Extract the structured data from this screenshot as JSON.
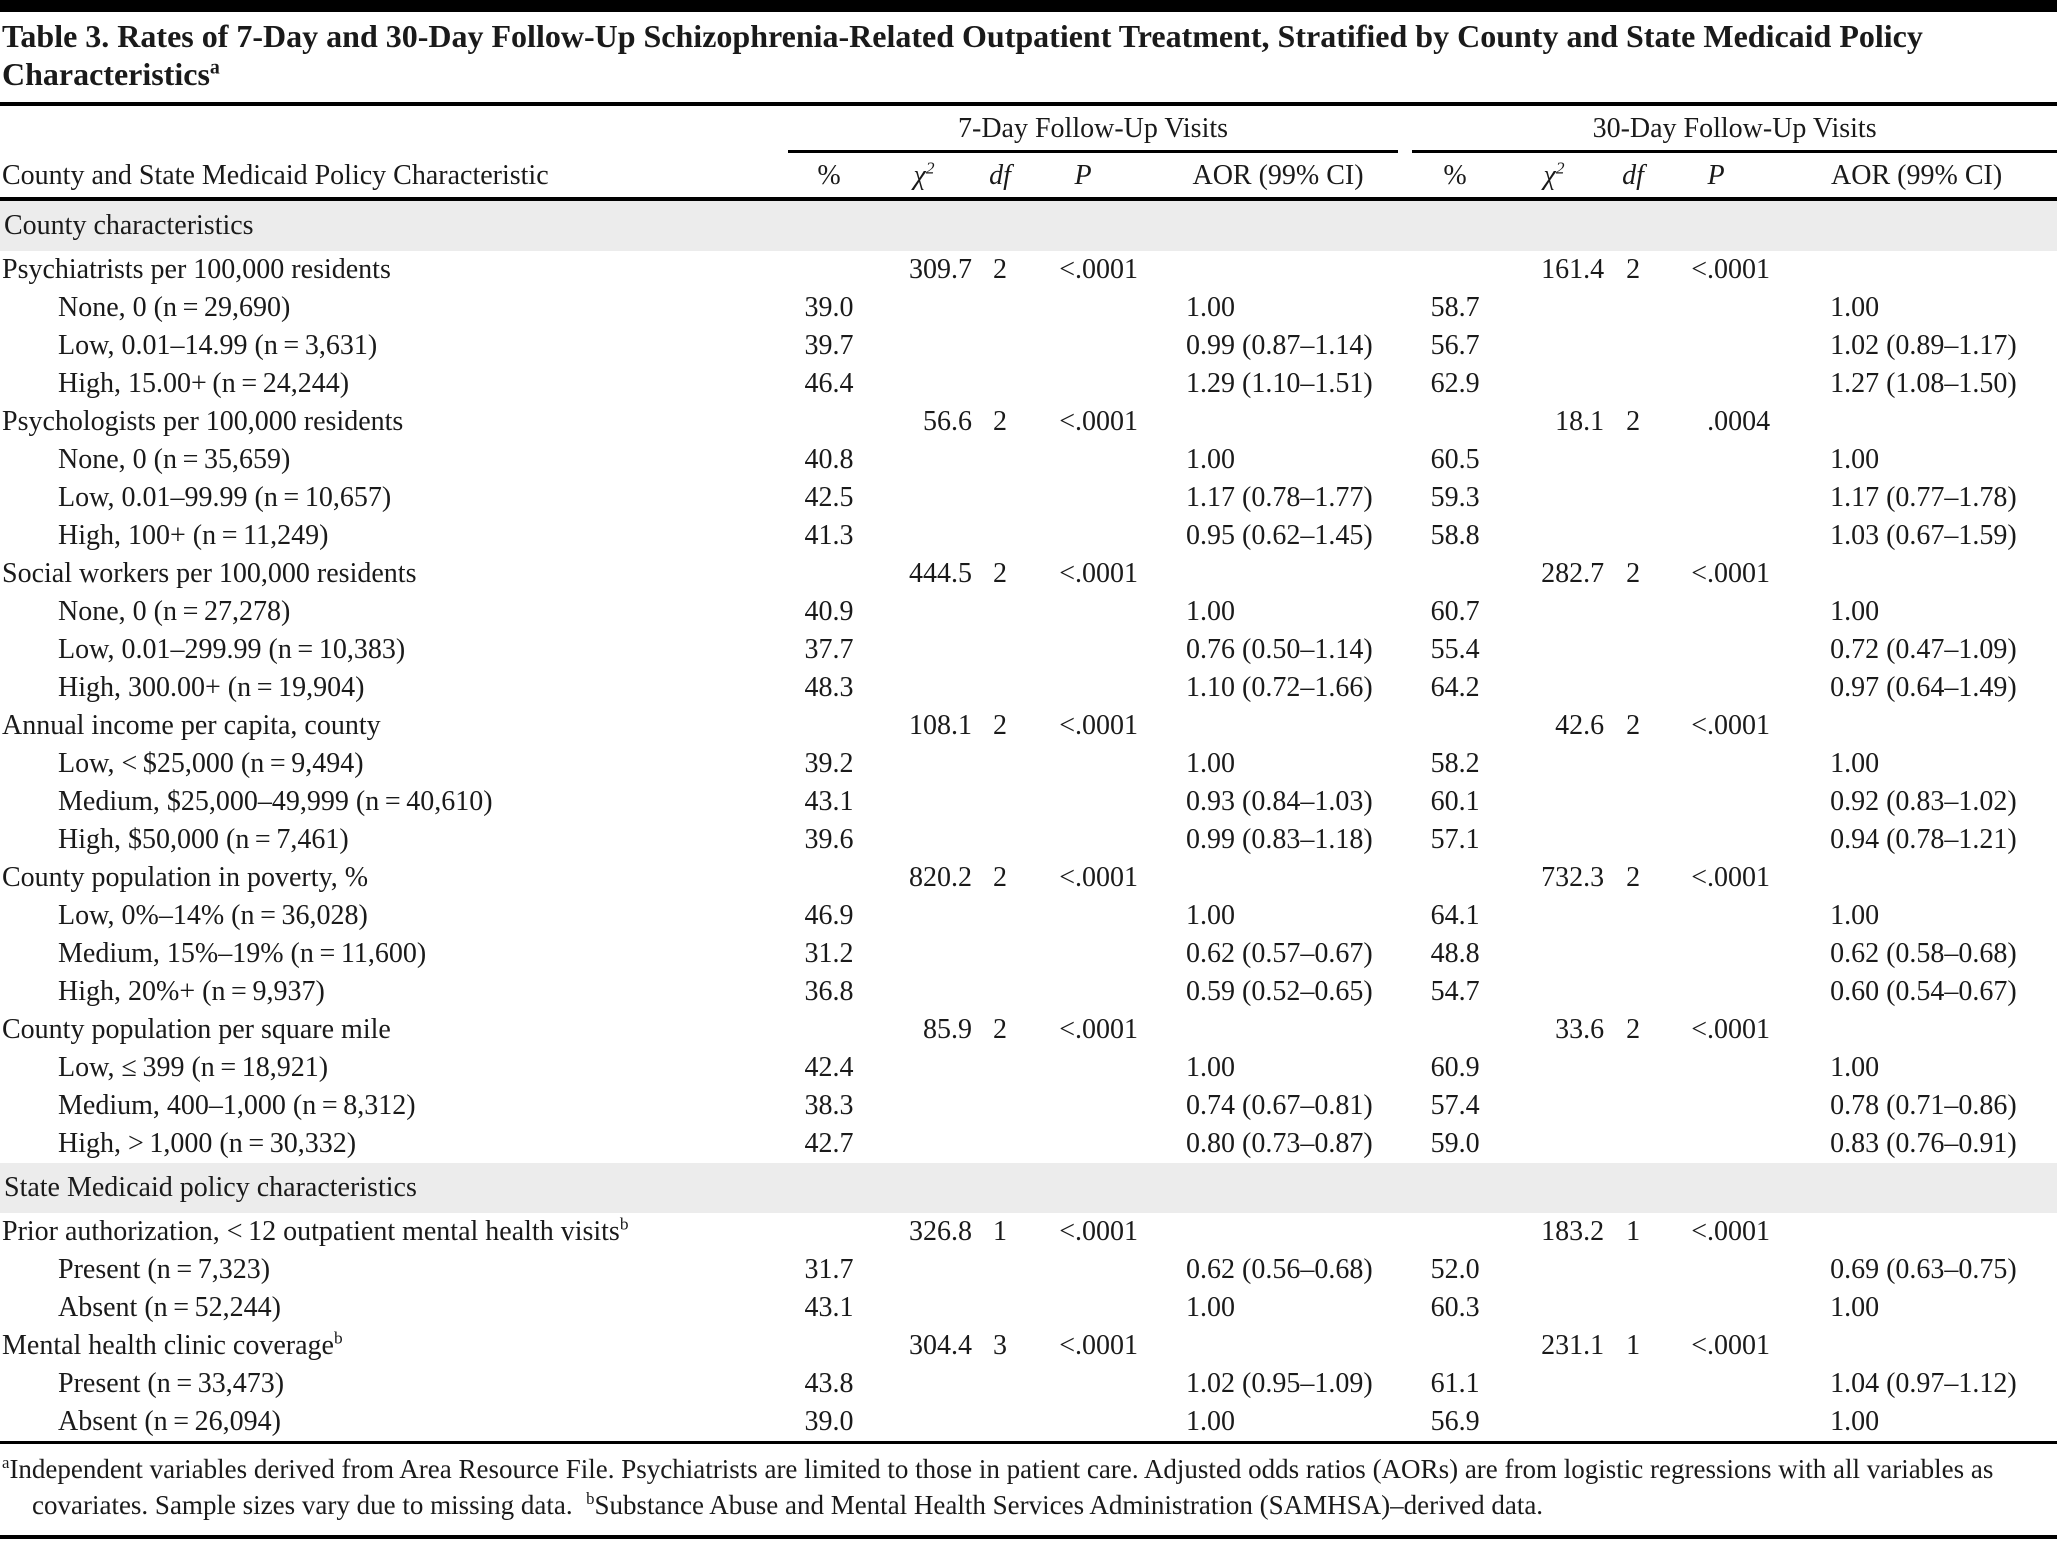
{
  "colors": {
    "rule": "#000000",
    "band": "#ececec",
    "ink": "#1a1a1a"
  },
  "title": {
    "text": "Table 3. Rates of 7-Day and 30-Day Follow-Up Schizophrenia-Related Outpatient Treatment, Stratified by County and State Medicaid Policy Characteristics",
    "sup": "a"
  },
  "header": {
    "stub": "County and State Medicaid Policy Characteristic",
    "groups": [
      {
        "label": "7-Day Follow-Up Visits"
      },
      {
        "label": "30-Day Follow-Up Visits"
      }
    ],
    "columns": [
      {
        "name": "pct",
        "text": "%",
        "italic": false
      },
      {
        "name": "chi2",
        "text": "χ",
        "sup": "2",
        "italic": true
      },
      {
        "name": "df",
        "text": "df",
        "italic": true
      },
      {
        "name": "p",
        "text": "P",
        "italic": true
      },
      {
        "name": "aor",
        "text": "AOR (99% CI)",
        "italic": false
      }
    ]
  },
  "table": {
    "rows": [
      {
        "type": "section",
        "label": "County characteristics"
      },
      {
        "type": "group",
        "label": "Psychiatrists per 100,000 residents",
        "cells": [
          "",
          "309.7",
          "2",
          "<.0001",
          "",
          "",
          "161.4",
          "2",
          "<.0001",
          ""
        ]
      },
      {
        "type": "item",
        "label": "None, 0 (n = 29,690)",
        "cells": [
          "39.0",
          "",
          "",
          "",
          "1.00",
          "58.7",
          "",
          "",
          "",
          "1.00"
        ]
      },
      {
        "type": "item",
        "label": "Low, 0.01–14.99 (n = 3,631)",
        "cells": [
          "39.7",
          "",
          "",
          "",
          "0.99 (0.87–1.14)",
          "56.7",
          "",
          "",
          "",
          "1.02 (0.89–1.17)"
        ]
      },
      {
        "type": "item",
        "label": "High, 15.00+ (n = 24,244)",
        "cells": [
          "46.4",
          "",
          "",
          "",
          "1.29 (1.10–1.51)",
          "62.9",
          "",
          "",
          "",
          "1.27 (1.08–1.50)"
        ]
      },
      {
        "type": "group",
        "label": "Psychologists per 100,000 residents",
        "cells": [
          "",
          "56.6",
          "2",
          "<.0001",
          "",
          "",
          "18.1",
          "2",
          ".0004",
          ""
        ]
      },
      {
        "type": "item",
        "label": "None, 0 (n = 35,659)",
        "cells": [
          "40.8",
          "",
          "",
          "",
          "1.00",
          "60.5",
          "",
          "",
          "",
          "1.00"
        ]
      },
      {
        "type": "item",
        "label": "Low, 0.01–99.99 (n = 10,657)",
        "cells": [
          "42.5",
          "",
          "",
          "",
          "1.17 (0.78–1.77)",
          "59.3",
          "",
          "",
          "",
          "1.17 (0.77–1.78)"
        ]
      },
      {
        "type": "item",
        "label": "High, 100+ (n = 11,249)",
        "cells": [
          "41.3",
          "",
          "",
          "",
          "0.95 (0.62–1.45)",
          "58.8",
          "",
          "",
          "",
          "1.03 (0.67–1.59)"
        ]
      },
      {
        "type": "group",
        "label": "Social workers per 100,000 residents",
        "cells": [
          "",
          "444.5",
          "2",
          "<.0001",
          "",
          "",
          "282.7",
          "2",
          "<.0001",
          ""
        ]
      },
      {
        "type": "item",
        "label": "None, 0 (n = 27,278)",
        "cells": [
          "40.9",
          "",
          "",
          "",
          "1.00",
          "60.7",
          "",
          "",
          "",
          "1.00"
        ]
      },
      {
        "type": "item",
        "label": "Low, 0.01–299.99 (n = 10,383)",
        "cells": [
          "37.7",
          "",
          "",
          "",
          "0.76 (0.50–1.14)",
          "55.4",
          "",
          "",
          "",
          "0.72 (0.47–1.09)"
        ]
      },
      {
        "type": "item",
        "label": "High, 300.00+ (n = 19,904)",
        "cells": [
          "48.3",
          "",
          "",
          "",
          "1.10 (0.72–1.66)",
          "64.2",
          "",
          "",
          "",
          "0.97 (0.64–1.49)"
        ]
      },
      {
        "type": "group",
        "label": "Annual income per capita, county",
        "cells": [
          "",
          "108.1",
          "2",
          "<.0001",
          "",
          "",
          "42.6",
          "2",
          "<.0001",
          ""
        ]
      },
      {
        "type": "item",
        "label": "Low, < $25,000 (n = 9,494)",
        "cells": [
          "39.2",
          "",
          "",
          "",
          "1.00",
          "58.2",
          "",
          "",
          "",
          "1.00"
        ]
      },
      {
        "type": "item",
        "label": "Medium, $25,000–49,999 (n = 40,610)",
        "cells": [
          "43.1",
          "",
          "",
          "",
          "0.93 (0.84–1.03)",
          "60.1",
          "",
          "",
          "",
          "0.92 (0.83–1.02)"
        ]
      },
      {
        "type": "item",
        "label": "High, $50,000 (n = 7,461)",
        "cells": [
          "39.6",
          "",
          "",
          "",
          "0.99 (0.83–1.18)",
          "57.1",
          "",
          "",
          "",
          "0.94 (0.78–1.21)"
        ]
      },
      {
        "type": "group",
        "label": "County population in poverty, %",
        "cells": [
          "",
          "820.2",
          "2",
          "<.0001",
          "",
          "",
          "732.3",
          "2",
          "<.0001",
          ""
        ]
      },
      {
        "type": "item",
        "label": "Low, 0%–14% (n = 36,028)",
        "cells": [
          "46.9",
          "",
          "",
          "",
          "1.00",
          "64.1",
          "",
          "",
          "",
          "1.00"
        ]
      },
      {
        "type": "item",
        "label": "Medium, 15%–19% (n = 11,600)",
        "cells": [
          "31.2",
          "",
          "",
          "",
          "0.62 (0.57–0.67)",
          "48.8",
          "",
          "",
          "",
          "0.62 (0.58–0.68)"
        ]
      },
      {
        "type": "item",
        "label": "High, 20%+ (n = 9,937)",
        "cells": [
          "36.8",
          "",
          "",
          "",
          "0.59 (0.52–0.65)",
          "54.7",
          "",
          "",
          "",
          "0.60 (0.54–0.67)"
        ]
      },
      {
        "type": "group",
        "label": "County population per square mile",
        "cells": [
          "",
          "85.9",
          "2",
          "<.0001",
          "",
          "",
          "33.6",
          "2",
          "<.0001",
          ""
        ]
      },
      {
        "type": "item",
        "label": "Low, ≤ 399 (n = 18,921)",
        "cells": [
          "42.4",
          "",
          "",
          "",
          "1.00",
          "60.9",
          "",
          "",
          "",
          "1.00"
        ]
      },
      {
        "type": "item",
        "label": "Medium, 400–1,000 (n = 8,312)",
        "cells": [
          "38.3",
          "",
          "",
          "",
          "0.74 (0.67–0.81)",
          "57.4",
          "",
          "",
          "",
          "0.78 (0.71–0.86)"
        ]
      },
      {
        "type": "item",
        "label": "High, > 1,000 (n = 30,332)",
        "cells": [
          "42.7",
          "",
          "",
          "",
          "0.80 (0.73–0.87)",
          "59.0",
          "",
          "",
          "",
          "0.83 (0.76–0.91)"
        ]
      },
      {
        "type": "section",
        "label": "State Medicaid policy characteristics"
      },
      {
        "type": "group",
        "label": "Prior authorization, < 12 outpatient mental health visits",
        "sup": "b",
        "cells": [
          "",
          "326.8",
          "1",
          "<.0001",
          "",
          "",
          "183.2",
          "1",
          "<.0001",
          ""
        ]
      },
      {
        "type": "item",
        "label": "Present (n = 7,323)",
        "cells": [
          "31.7",
          "",
          "",
          "",
          "0.62 (0.56–0.68)",
          "52.0",
          "",
          "",
          "",
          "0.69 (0.63–0.75)"
        ]
      },
      {
        "type": "item",
        "label": "Absent (n = 52,244)",
        "cells": [
          "43.1",
          "",
          "",
          "",
          "1.00",
          "60.3",
          "",
          "",
          "",
          "1.00"
        ]
      },
      {
        "type": "group",
        "label": "Mental health clinic coverage",
        "sup": "b",
        "cells": [
          "",
          "304.4",
          "3",
          "<.0001",
          "",
          "",
          "231.1",
          "1",
          "<.0001",
          ""
        ]
      },
      {
        "type": "item",
        "label": "Present (n = 33,473)",
        "cells": [
          "43.8",
          "",
          "",
          "",
          "1.02 (0.95–1.09)",
          "61.1",
          "",
          "",
          "",
          "1.04 (0.97–1.12)"
        ]
      },
      {
        "type": "item",
        "label": "Absent (n = 26,094)",
        "cells": [
          "39.0",
          "",
          "",
          "",
          "1.00",
          "56.9",
          "",
          "",
          "",
          "1.00"
        ]
      }
    ]
  },
  "footnotes": [
    {
      "sup": "a",
      "text": "Independent variables derived from Area Resource File. Psychiatrists are limited to those in patient care. Adjusted odds ratios (AORs) are from logistic regressions with all variables as covariates. Sample sizes vary due to missing data."
    },
    {
      "sup": "b",
      "text": "Substance Abuse and Mental Health Services Administration (SAMHSA)–derived data."
    }
  ]
}
